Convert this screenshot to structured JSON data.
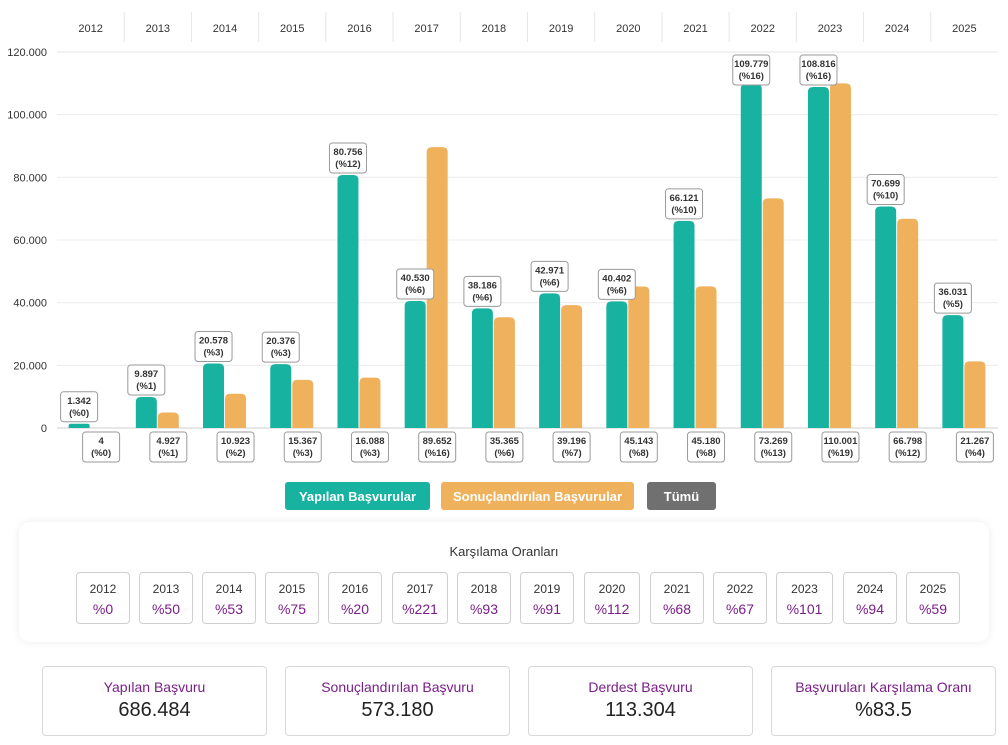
{
  "chart_data": {
    "type": "bar",
    "categories": [
      "2012",
      "2013",
      "2014",
      "2015",
      "2016",
      "2017",
      "2018",
      "2019",
      "2020",
      "2021",
      "2022",
      "2023",
      "2024",
      "2025"
    ],
    "y_ticks": [
      "0",
      "20.000",
      "40.000",
      "60.000",
      "80.000",
      "100.000",
      "120.000"
    ],
    "ylim": [
      0,
      120000
    ],
    "grid": true,
    "series": [
      {
        "name": "Yapılan Başvurular",
        "color": "#17b3a0",
        "values": [
          1342,
          9897,
          20578,
          20376,
          80756,
          40530,
          38186,
          42971,
          40402,
          66121,
          109779,
          108816,
          70699,
          36031
        ],
        "labels": [
          "1.342",
          "9.897",
          "20.578",
          "20.376",
          "80.756",
          "40.530",
          "38.186",
          "42.971",
          "40.402",
          "66.121",
          "109.779",
          "108.816",
          "70.699",
          "36.031"
        ],
        "percents": [
          "(%0)",
          "(%1)",
          "(%3)",
          "(%3)",
          "(%12)",
          "(%6)",
          "(%6)",
          "(%6)",
          "(%6)",
          "(%10)",
          "(%16)",
          "(%16)",
          "(%10)",
          "(%5)"
        ]
      },
      {
        "name": "Sonuçlandırılan Başvurular",
        "color": "#f0b15d",
        "values": [
          4,
          4927,
          10923,
          15367,
          16088,
          89652,
          35365,
          39196,
          45143,
          45180,
          73269,
          110001,
          66798,
          21267
        ],
        "labels": [
          "4",
          "4.927",
          "10.923",
          "15.367",
          "16.088",
          "89.652",
          "35.365",
          "39.196",
          "45.143",
          "45.180",
          "73.269",
          "110.001",
          "66.798",
          "21.267"
        ],
        "percents": [
          "(%0)",
          "(%1)",
          "(%2)",
          "(%3)",
          "(%3)",
          "(%16)",
          "(%6)",
          "(%7)",
          "(%8)",
          "(%8)",
          "(%13)",
          "(%19)",
          "(%12)",
          "(%4)"
        ]
      }
    ]
  },
  "legend": {
    "yapilan": "Yapılan Başvurular",
    "sonuc": "Sonuçlandırılan Başvurular",
    "tumu": "Tümü"
  },
  "rates": {
    "title": "Karşılama Oranları",
    "items": [
      {
        "year": "2012",
        "value": "%0"
      },
      {
        "year": "2013",
        "value": "%50"
      },
      {
        "year": "2014",
        "value": "%53"
      },
      {
        "year": "2015",
        "value": "%75"
      },
      {
        "year": "2016",
        "value": "%20"
      },
      {
        "year": "2017",
        "value": "%221"
      },
      {
        "year": "2018",
        "value": "%93"
      },
      {
        "year": "2019",
        "value": "%91"
      },
      {
        "year": "2020",
        "value": "%112"
      },
      {
        "year": "2021",
        "value": "%68"
      },
      {
        "year": "2022",
        "value": "%67"
      },
      {
        "year": "2023",
        "value": "%101"
      },
      {
        "year": "2024",
        "value": "%94"
      },
      {
        "year": "2025",
        "value": "%59"
      }
    ]
  },
  "stats": [
    {
      "label": "Yapılan Başvuru",
      "value": "686.484"
    },
    {
      "label": "Sonuçlandırılan Başvuru",
      "value": "573.180"
    },
    {
      "label": "Derdest Başvuru",
      "value": "113.304"
    },
    {
      "label": "Başvuruları Karşılama Oranı",
      "value": "%83.5"
    }
  ]
}
